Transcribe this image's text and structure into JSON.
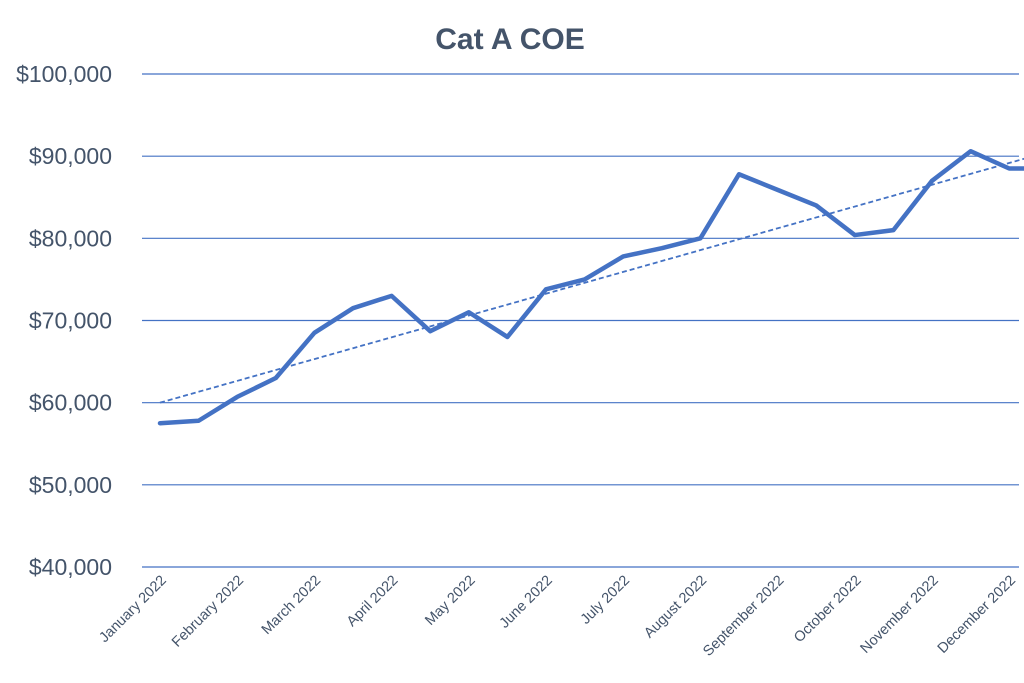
{
  "chart_data": {
    "type": "line",
    "title": "Cat A COE",
    "xlabel": "",
    "ylabel": "",
    "ylim": [
      40000,
      100000
    ],
    "y_ticks": [
      40000,
      50000,
      60000,
      70000,
      80000,
      90000,
      100000
    ],
    "y_tick_labels": [
      "$40,000",
      "$50,000",
      "$60,000",
      "$70,000",
      "$80,000",
      "$90,000",
      "$100,000"
    ],
    "grid": true,
    "legend": "none",
    "categories": [
      "January 2022",
      "February 2022",
      "March 2022",
      "April 2022",
      "May 2022",
      "June 2022",
      "July 2022",
      "August 2022",
      "September 2022",
      "October 2022",
      "November 2022",
      "December 2022"
    ],
    "series": [
      {
        "name": "Cat A COE",
        "x": [
          0,
          0.5,
          1,
          1.5,
          2,
          2.5,
          3,
          3.5,
          4,
          4.5,
          5,
          5.5,
          6,
          6.5,
          7,
          7.5,
          8,
          8.5,
          9,
          9.5,
          10,
          10.5,
          11,
          11.5
        ],
        "values": [
          57500,
          57800,
          60700,
          63000,
          68500,
          71500,
          73000,
          68700,
          71000,
          68000,
          73800,
          75000,
          77800,
          78800,
          80000,
          87800,
          85900,
          84000,
          80400,
          81000,
          87000,
          90600,
          88500,
          88500
        ],
        "style": "solid"
      }
    ],
    "trendline": {
      "type": "linear",
      "style": "dashed",
      "x": [
        0,
        11.5
      ],
      "values": [
        60000,
        90500
      ]
    }
  },
  "colors": {
    "series": "#4472c4",
    "gridline": "#4472c4",
    "text": "#44546a",
    "background": "#ffffff"
  }
}
